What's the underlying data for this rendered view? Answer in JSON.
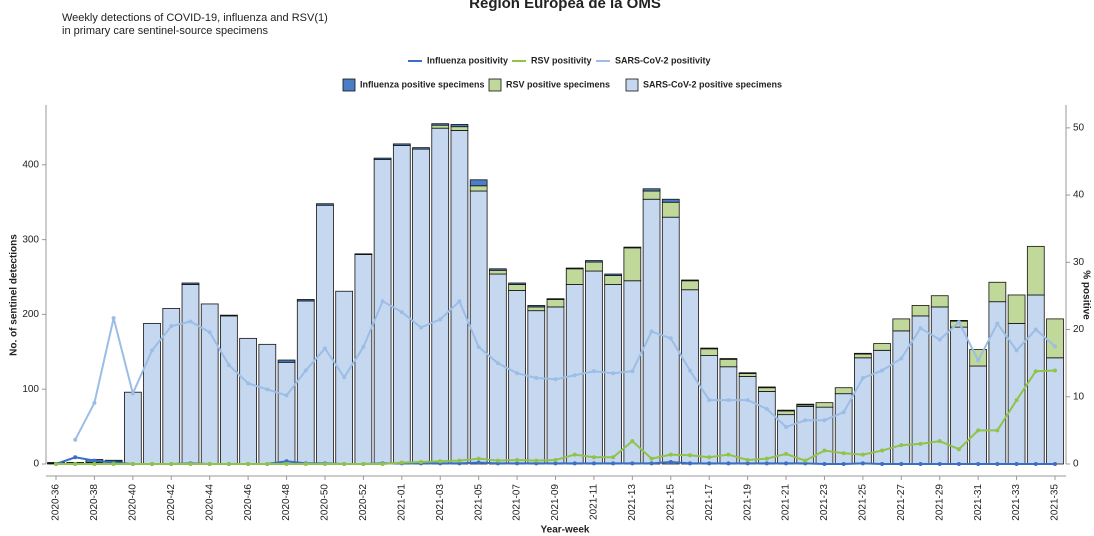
{
  "chart_data": {
    "type": "bar",
    "title": "Región Europea de la OMS",
    "subtitle": [
      "Weekly detections of COVID-19, influenza and RSV(1)",
      "in primary care sentinel-source specimens"
    ],
    "x_label": "Year-week",
    "y_label": "No. of sentinel detections",
    "y2_label": "% positive",
    "categories": [
      "2020-36",
      null,
      "2020-38",
      null,
      "2020-40",
      null,
      "2020-42",
      null,
      "2020-44",
      null,
      "2020-46",
      null,
      "2020-48",
      null,
      "2020-50",
      null,
      "2020-52",
      null,
      "2021-01",
      null,
      "2021-03",
      null,
      "2021-05",
      null,
      "2021-07",
      null,
      "2021-09",
      null,
      "2021-11",
      null,
      "2021-13",
      null,
      "2021-15",
      null,
      "2021-17",
      null,
      "2021-19",
      null,
      "2021-21",
      null,
      "2021-23",
      null,
      "2021-25",
      null,
      "2021-27",
      null,
      "2021-29",
      null,
      "2021-31",
      null,
      "2021-33",
      null,
      "2021-35"
    ],
    "ylim": [
      0,
      480
    ],
    "yticks": [
      0,
      100,
      200,
      300,
      400
    ],
    "y2lim": [
      0,
      53.4
    ],
    "y2ticks": [
      0,
      10,
      20,
      30,
      40,
      50
    ],
    "series": [
      {
        "name": "Influenza positivity",
        "type": "line",
        "axis": "y2",
        "color": "#3a6fc4",
        "values": [
          0,
          1.0,
          0.5,
          0.2,
          0,
          0,
          0,
          0.1,
          0,
          0,
          0,
          0,
          0.4,
          0.1,
          0.1,
          0,
          0,
          0.1,
          0.1,
          0.1,
          0.1,
          0.1,
          0.2,
          0.1,
          0.1,
          0.1,
          0.1,
          0.1,
          0.1,
          0.1,
          0.1,
          0.1,
          0.3,
          0.1,
          0.1,
          0.1,
          0.1,
          0.1,
          0.1,
          0.1,
          0,
          0,
          0.1,
          0,
          0,
          0,
          0,
          0,
          0,
          0,
          0,
          0,
          0
        ]
      },
      {
        "name": "RSV positivity",
        "type": "line",
        "axis": "y2",
        "color": "#8fc34a",
        "values": [
          0,
          0,
          0,
          0,
          0,
          0,
          0,
          0,
          0,
          0,
          0,
          0,
          0,
          0,
          0,
          0,
          0,
          0,
          0.2,
          0.3,
          0.4,
          0.5,
          0.8,
          0.5,
          0.6,
          0.5,
          0.6,
          1.4,
          1.0,
          1.0,
          3.4,
          0.8,
          1.4,
          1.3,
          1.0,
          1.4,
          0.6,
          0.8,
          1.5,
          0.5,
          2.0,
          1.6,
          1.4,
          2.0,
          2.8,
          3.0,
          3.4,
          2.2,
          5.0,
          5.0,
          9.5,
          13.8,
          13.9
        ]
      },
      {
        "name": "SARS-CoV-2 positivity",
        "type": "line",
        "axis": "y2",
        "color": "#9bbde6",
        "values": [
          null,
          3.6,
          9.1,
          21.7,
          10.5,
          16.9,
          20.5,
          21.2,
          19.6,
          14.7,
          12.0,
          11.1,
          10.2,
          13.9,
          17.2,
          12.9,
          17.4,
          24.2,
          22.6,
          20.3,
          21.5,
          24.2,
          17.4,
          15.0,
          13.5,
          12.8,
          12.6,
          13.2,
          13.8,
          13.5,
          13.8,
          19.7,
          18.7,
          13.9,
          9.5,
          9.5,
          9.5,
          8.2,
          5.5,
          6.5,
          6.5,
          7.7,
          12.8,
          13.9,
          15.7,
          20.2,
          18.5,
          21.1,
          15.4,
          20.9,
          16.9,
          20.0,
          17.5
        ]
      },
      {
        "name": "Influenza positive specimens",
        "type": "bar",
        "color": "#4a7fc8",
        "values": [
          1,
          1,
          4,
          2,
          0,
          0,
          0,
          2,
          0,
          1,
          0,
          0,
          3,
          2,
          2,
          0,
          1,
          2,
          2,
          2,
          2,
          3,
          8,
          2,
          2,
          2,
          1,
          1,
          2,
          2,
          1,
          3,
          4,
          1,
          1,
          1,
          1,
          1,
          1,
          1,
          0,
          0,
          1,
          0,
          0,
          0,
          0,
          1,
          0,
          0,
          0,
          0,
          0
        ]
      },
      {
        "name": "RSV positive specimens",
        "type": "bar",
        "color": "#c0d89a",
        "values": [
          0,
          0,
          0,
          0,
          0,
          0,
          0,
          0,
          0,
          0,
          0,
          0,
          0,
          0,
          0,
          0,
          0,
          0,
          0,
          0,
          4,
          5,
          7,
          5,
          8,
          5,
          10,
          21,
          12,
          12,
          44,
          11,
          20,
          12,
          9,
          10,
          4,
          5,
          5,
          2,
          6,
          8,
          5,
          9,
          16,
          14,
          15,
          8,
          22,
          26,
          38,
          65,
          52
        ]
      },
      {
        "name": "SARS-CoV-2 positive specimens",
        "type": "bar",
        "color": "#c6d8ef",
        "values": [
          1,
          1,
          2,
          3,
          96,
          188,
          208,
          240,
          214,
          198,
          168,
          160,
          136,
          218,
          346,
          231,
          280,
          407,
          426,
          421,
          449,
          446,
          365,
          254,
          232,
          205,
          210,
          240,
          258,
          240,
          245,
          354,
          330,
          233,
          145,
          130,
          117,
          97,
          66,
          77,
          76,
          94,
          142,
          152,
          178,
          198,
          210,
          183,
          131,
          217,
          188,
          226,
          142
        ]
      }
    ]
  }
}
